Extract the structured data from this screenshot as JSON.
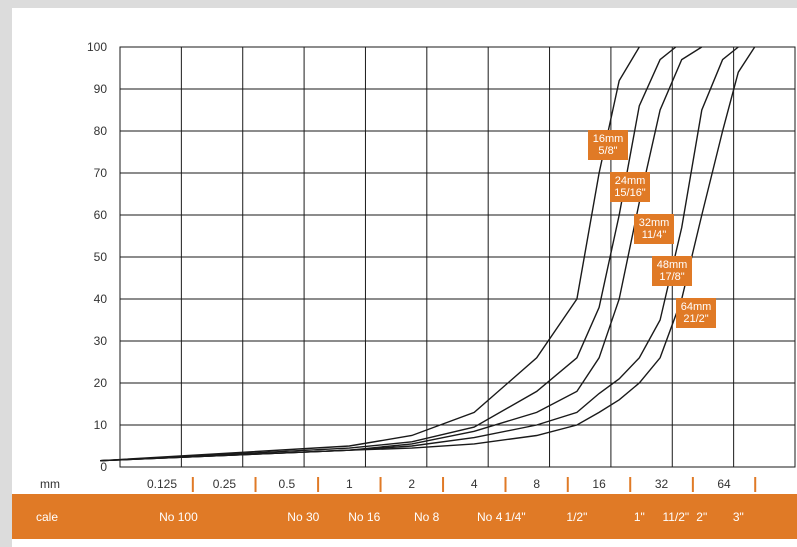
{
  "chart_data": {
    "type": "line",
    "x_scale": "log",
    "ylim": [
      0,
      100
    ],
    "yticks": [
      0,
      10,
      20,
      30,
      40,
      50,
      60,
      70,
      80,
      90,
      100
    ],
    "grid": true,
    "x_unit_label": "mm",
    "x_ticks_mm": [
      {
        "label": "0.125",
        "value": 0.125
      },
      {
        "label": "0.25",
        "value": 0.25
      },
      {
        "label": "0.5",
        "value": 0.5
      },
      {
        "label": "1",
        "value": 1
      },
      {
        "label": "2",
        "value": 2
      },
      {
        "label": "4",
        "value": 4
      },
      {
        "label": "8",
        "value": 8
      },
      {
        "label": "16",
        "value": 16
      },
      {
        "label": "32",
        "value": 32
      },
      {
        "label": "64",
        "value": 64
      }
    ],
    "sieve_row_label": "cale",
    "sieve_labels": [
      {
        "label": "No 100",
        "value": 0.15
      },
      {
        "label": "No 30",
        "value": 0.6
      },
      {
        "label": "No 16",
        "value": 1.18
      },
      {
        "label": "No 8",
        "value": 2.36
      },
      {
        "label": "No 4",
        "value": 4.75
      },
      {
        "label": "1/4\"",
        "value": 6.3
      },
      {
        "label": "1/2\"",
        "value": 12.5
      },
      {
        "label": "1\"",
        "value": 25
      },
      {
        "label": "11/2\"",
        "value": 37.5
      },
      {
        "label": "2\"",
        "value": 50
      },
      {
        "label": "3\"",
        "value": 75
      }
    ],
    "series": [
      {
        "name": "16mm 5/8\"",
        "label_lines": [
          "16mm",
          "5/8\""
        ],
        "x": [
          0.063,
          1,
          2,
          4,
          8,
          12.5,
          16,
          20,
          25
        ],
        "y": [
          1.5,
          5,
          7.5,
          13,
          26,
          40,
          70,
          92,
          100
        ]
      },
      {
        "name": "24mm 15/16\"",
        "label_lines": [
          "24mm",
          "15/16\""
        ],
        "x": [
          0.063,
          1,
          2,
          4,
          8,
          12.5,
          16,
          20,
          25,
          31.5,
          37.5
        ],
        "y": [
          1.5,
          4.5,
          6,
          9.5,
          18,
          26,
          38,
          60,
          86,
          97,
          100
        ]
      },
      {
        "name": "32mm 11/4\"",
        "label_lines": [
          "32mm",
          "11/4\""
        ],
        "x": [
          0.063,
          1,
          2,
          4,
          8,
          12.5,
          16,
          20,
          25,
          31.5,
          40,
          50
        ],
        "y": [
          1.5,
          4,
          5.5,
          8.5,
          13,
          18,
          26,
          40,
          63,
          85,
          97,
          100
        ]
      },
      {
        "name": "48mm 17/8\"",
        "label_lines": [
          "48mm",
          "17/8\""
        ],
        "x": [
          0.063,
          1,
          2,
          4,
          8,
          12.5,
          16,
          20,
          25,
          31.5,
          40,
          50,
          63,
          75
        ],
        "y": [
          1.5,
          4,
          5,
          7,
          10,
          13,
          17.5,
          21,
          26,
          35,
          57,
          85,
          97,
          100
        ]
      },
      {
        "name": "64mm 21/2\"",
        "label_lines": [
          "64mm",
          "21/2\""
        ],
        "x": [
          0.063,
          1,
          2,
          4,
          8,
          12.5,
          16,
          20,
          25,
          31.5,
          40,
          50,
          63,
          75,
          90
        ],
        "y": [
          1.5,
          4,
          4.5,
          5.5,
          7.5,
          10,
          13,
          16,
          20,
          26,
          40,
          60,
          80,
          94,
          100
        ]
      }
    ],
    "line_color": "#1a1a1a",
    "label_color": "#e07a26",
    "band_color": "#e07a26"
  }
}
